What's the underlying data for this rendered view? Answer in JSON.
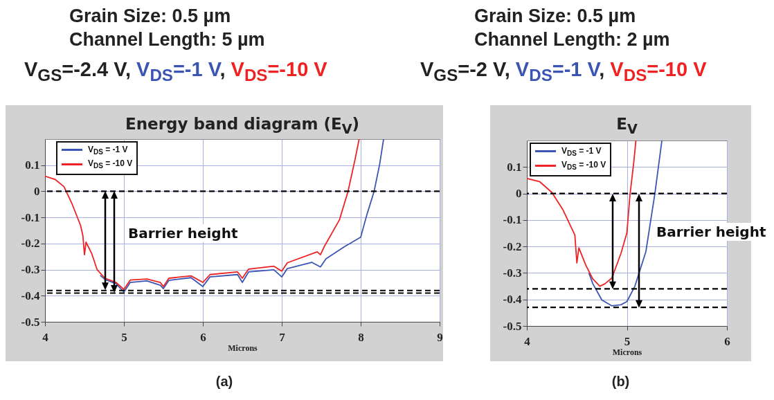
{
  "chart_data": [
    {
      "type": "line",
      "title": "Energy band diagram (E$_{V}$)",
      "subtitle": "Grain Size: 0.5 µm\nChannel Length: 5 µm",
      "xlabel": "Microns",
      "xlim": [
        4,
        9
      ],
      "xticks": [
        4,
        5,
        6,
        7,
        8,
        9
      ],
      "ylim": [
        -0.5,
        0.2
      ],
      "yticks": [
        -0.5,
        -0.4,
        -0.3,
        -0.2,
        -0.1,
        0,
        0.1
      ],
      "grid": true,
      "legend": "top left",
      "series": [
        {
          "name": "V$_{DS}$ = -1 V",
          "color": "#3a55b4",
          "x": [
            4.7,
            4.76,
            4.9,
            5.0,
            5.08,
            5.29,
            5.46,
            5.5,
            5.57,
            5.85,
            6.0,
            6.09,
            6.44,
            6.5,
            6.58,
            6.9,
            7.0,
            7.07,
            7.38,
            7.49,
            7.56,
            7.8,
            8.0,
            8.08,
            8.17,
            8.24,
            8.29
          ],
          "values": [
            -0.322,
            -0.338,
            -0.354,
            -0.386,
            -0.349,
            -0.343,
            -0.36,
            -0.373,
            -0.341,
            -0.331,
            -0.365,
            -0.328,
            -0.319,
            -0.349,
            -0.309,
            -0.301,
            -0.328,
            -0.296,
            -0.272,
            -0.29,
            -0.259,
            -0.211,
            -0.176,
            -0.088,
            0,
            0.103,
            0.2
          ]
        },
        {
          "name": "V$_{DS}$ = -10 V",
          "color": "#ee2222",
          "x": [
            4.0,
            4.13,
            4.24,
            4.34,
            4.45,
            4.48,
            4.5,
            4.52,
            4.59,
            4.66,
            4.76,
            4.9,
            5.0,
            5.08,
            5.29,
            5.46,
            5.5,
            5.57,
            5.85,
            6.0,
            6.09,
            6.44,
            6.5,
            6.58,
            6.9,
            7.0,
            7.07,
            7.45,
            7.49,
            7.54,
            7.73,
            7.84,
            7.93,
            7.98
          ],
          "values": [
            0.058,
            0.045,
            0.018,
            -0.046,
            -0.13,
            -0.17,
            -0.243,
            -0.195,
            -0.237,
            -0.3,
            -0.333,
            -0.349,
            -0.376,
            -0.34,
            -0.336,
            -0.349,
            -0.365,
            -0.333,
            -0.324,
            -0.349,
            -0.319,
            -0.309,
            -0.333,
            -0.298,
            -0.287,
            -0.306,
            -0.274,
            -0.232,
            -0.243,
            -0.211,
            -0.11,
            0,
            0.124,
            0.2
          ]
        }
      ],
      "ref_lines": [
        {
          "axis": "y",
          "value": 0,
          "color": "#000000",
          "line_style": "dashed"
        },
        {
          "axis": "y",
          "value": -0.38,
          "color": "#000000",
          "line_style": "dashed"
        },
        {
          "axis": "y",
          "value": -0.39,
          "color": "#000000",
          "line_style": "dashed"
        }
      ],
      "annotations": [
        "V$_{GS}$=-2.4 V, V$_{DS}$=-1 V, V$_{DS}$=-10 V",
        "Barrier height",
        "(a)"
      ]
    },
    {
      "type": "line",
      "title": "E$_{V}$",
      "subtitle": "Grain Size: 0.5 µm\nChannel Length: 2 µm",
      "xlabel": "Microns",
      "xlim": [
        4,
        6
      ],
      "xticks": [
        4,
        5,
        6
      ],
      "ylim": [
        -0.5,
        0.2
      ],
      "yticks": [
        -0.5,
        -0.4,
        -0.3,
        -0.2,
        -0.1,
        0,
        0.1
      ],
      "grid": true,
      "legend": "top left",
      "series": [
        {
          "name": "V$_{DS}$ = -1 V",
          "color": "#3a55b4",
          "x": [
            4.62,
            4.66,
            4.75,
            4.85,
            4.94,
            5.0,
            5.08,
            5.19,
            5.28,
            5.35
          ],
          "values": [
            -0.3,
            -0.341,
            -0.402,
            -0.424,
            -0.42,
            -0.408,
            -0.35,
            -0.219,
            0,
            0.2
          ]
        },
        {
          "name": "V$_{DS}$ = -10 V",
          "color": "#ee2222",
          "x": [
            4.0,
            4.13,
            4.25,
            4.36,
            4.48,
            4.5,
            4.52,
            4.59,
            4.66,
            4.73,
            4.78,
            4.85,
            4.94,
            5.0,
            5.03,
            5.07,
            5.09
          ],
          "values": [
            0.057,
            0.044,
            0.004,
            -0.061,
            -0.157,
            -0.262,
            -0.205,
            -0.271,
            -0.323,
            -0.35,
            -0.341,
            -0.319,
            -0.227,
            -0.149,
            -0.009,
            0.122,
            0.2
          ]
        }
      ],
      "ref_lines": [
        {
          "axis": "y",
          "value": 0,
          "color": "#000000",
          "line_style": "dashed"
        },
        {
          "axis": "y",
          "value": -0.36,
          "color": "#000000",
          "line_style": "dashed"
        },
        {
          "axis": "y",
          "value": -0.43,
          "color": "#000000",
          "line_style": "dashed"
        }
      ],
      "annotations": [
        "V$_{GS}$=-2 V, V$_{DS}$=-1 V, V$_{DS}$=-10 V",
        "Barrier height",
        "(b)"
      ]
    }
  ]
}
